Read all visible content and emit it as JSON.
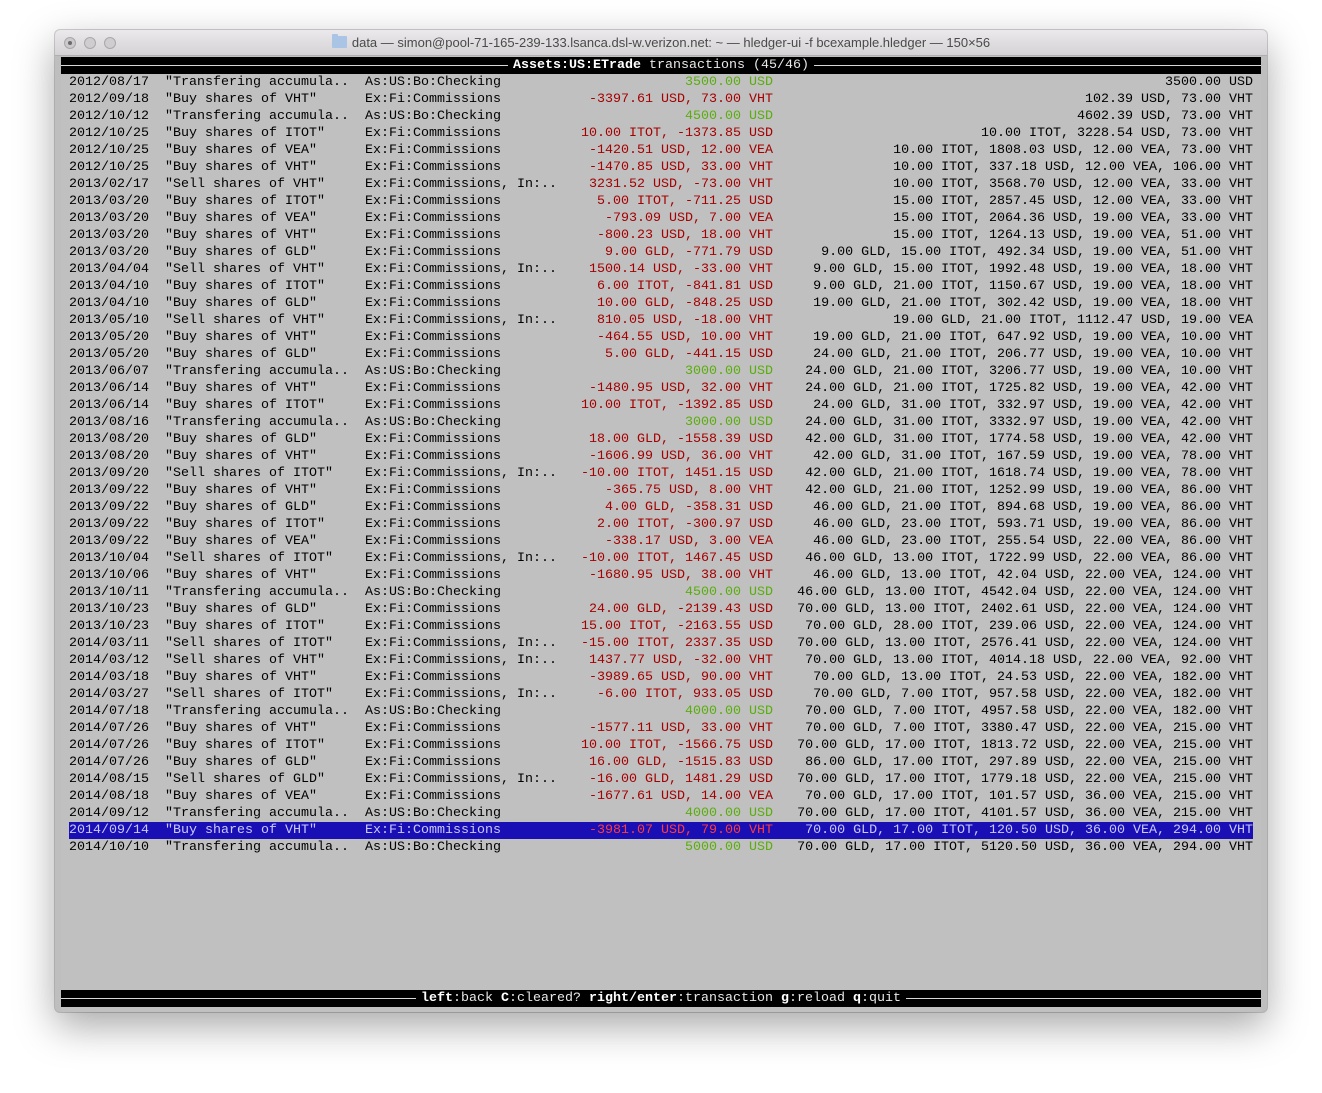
{
  "window": {
    "title": "data — simon@pool-71-165-239-133.lsanca.dsl-w.verizon.net: ~ — hledger-ui -f bcexample.hledger — 150×56",
    "icon": "folder-icon"
  },
  "header": {
    "account": "Assets:US:ETrade",
    "suffix": " transactions (45/46)"
  },
  "colors": {
    "positive": "#5aad0c",
    "negative": "#a40000",
    "selection": "#1a0fb4",
    "background": "#c0c0c0"
  },
  "selected_index": 44,
  "rows": [
    {
      "date": "2012/08/17",
      "desc": "\"Transfering accumula..",
      "account": "As:US:Bo:Checking",
      "amount": "3500.00 USD",
      "balance": "3500.00 USD",
      "sign": "in"
    },
    {
      "date": "2012/09/18",
      "desc": "\"Buy shares of VHT\"",
      "account": "Ex:Fi:Commissions",
      "amount": "-3397.61 USD, 73.00 VHT",
      "balance": "102.39 USD, 73.00 VHT",
      "sign": "out"
    },
    {
      "date": "2012/10/12",
      "desc": "\"Transfering accumula..",
      "account": "As:US:Bo:Checking",
      "amount": "4500.00 USD",
      "balance": "4602.39 USD, 73.00 VHT",
      "sign": "in"
    },
    {
      "date": "2012/10/25",
      "desc": "\"Buy shares of ITOT\"",
      "account": "Ex:Fi:Commissions",
      "amount": "10.00 ITOT, -1373.85 USD",
      "balance": "10.00 ITOT, 3228.54 USD, 73.00 VHT",
      "sign": "out"
    },
    {
      "date": "2012/10/25",
      "desc": "\"Buy shares of VEA\"",
      "account": "Ex:Fi:Commissions",
      "amount": "-1420.51 USD, 12.00 VEA",
      "balance": "10.00 ITOT, 1808.03 USD, 12.00 VEA, 73.00 VHT",
      "sign": "out"
    },
    {
      "date": "2012/10/25",
      "desc": "\"Buy shares of VHT\"",
      "account": "Ex:Fi:Commissions",
      "amount": "-1470.85 USD, 33.00 VHT",
      "balance": "10.00 ITOT, 337.18 USD, 12.00 VEA, 106.00 VHT",
      "sign": "out"
    },
    {
      "date": "2013/02/17",
      "desc": "\"Sell shares of VHT\"",
      "account": "Ex:Fi:Commissions, In:..",
      "amount": "3231.52 USD, -73.00 VHT",
      "balance": "10.00 ITOT, 3568.70 USD, 12.00 VEA, 33.00 VHT",
      "sign": "out"
    },
    {
      "date": "2013/03/20",
      "desc": "\"Buy shares of ITOT\"",
      "account": "Ex:Fi:Commissions",
      "amount": "5.00 ITOT, -711.25 USD",
      "balance": "15.00 ITOT, 2857.45 USD, 12.00 VEA, 33.00 VHT",
      "sign": "out"
    },
    {
      "date": "2013/03/20",
      "desc": "\"Buy shares of VEA\"",
      "account": "Ex:Fi:Commissions",
      "amount": "-793.09 USD, 7.00 VEA",
      "balance": "15.00 ITOT, 2064.36 USD, 19.00 VEA, 33.00 VHT",
      "sign": "out"
    },
    {
      "date": "2013/03/20",
      "desc": "\"Buy shares of VHT\"",
      "account": "Ex:Fi:Commissions",
      "amount": "-800.23 USD, 18.00 VHT",
      "balance": "15.00 ITOT, 1264.13 USD, 19.00 VEA, 51.00 VHT",
      "sign": "out"
    },
    {
      "date": "2013/03/20",
      "desc": "\"Buy shares of GLD\"",
      "account": "Ex:Fi:Commissions",
      "amount": "9.00 GLD, -771.79 USD",
      "balance": "9.00 GLD, 15.00 ITOT, 492.34 USD, 19.00 VEA, 51.00 VHT",
      "sign": "out"
    },
    {
      "date": "2013/04/04",
      "desc": "\"Sell shares of VHT\"",
      "account": "Ex:Fi:Commissions, In:..",
      "amount": "1500.14 USD, -33.00 VHT",
      "balance": "9.00 GLD, 15.00 ITOT, 1992.48 USD, 19.00 VEA, 18.00 VHT",
      "sign": "out"
    },
    {
      "date": "2013/04/10",
      "desc": "\"Buy shares of ITOT\"",
      "account": "Ex:Fi:Commissions",
      "amount": "6.00 ITOT, -841.81 USD",
      "balance": "9.00 GLD, 21.00 ITOT, 1150.67 USD, 19.00 VEA, 18.00 VHT",
      "sign": "out"
    },
    {
      "date": "2013/04/10",
      "desc": "\"Buy shares of GLD\"",
      "account": "Ex:Fi:Commissions",
      "amount": "10.00 GLD, -848.25 USD",
      "balance": "19.00 GLD, 21.00 ITOT, 302.42 USD, 19.00 VEA, 18.00 VHT",
      "sign": "out"
    },
    {
      "date": "2013/05/10",
      "desc": "\"Sell shares of VHT\"",
      "account": "Ex:Fi:Commissions, In:..",
      "amount": "810.05 USD, -18.00 VHT",
      "balance": "19.00 GLD, 21.00 ITOT, 1112.47 USD, 19.00 VEA",
      "sign": "out"
    },
    {
      "date": "2013/05/20",
      "desc": "\"Buy shares of VHT\"",
      "account": "Ex:Fi:Commissions",
      "amount": "-464.55 USD, 10.00 VHT",
      "balance": "19.00 GLD, 21.00 ITOT, 647.92 USD, 19.00 VEA, 10.00 VHT",
      "sign": "out"
    },
    {
      "date": "2013/05/20",
      "desc": "\"Buy shares of GLD\"",
      "account": "Ex:Fi:Commissions",
      "amount": "5.00 GLD, -441.15 USD",
      "balance": "24.00 GLD, 21.00 ITOT, 206.77 USD, 19.00 VEA, 10.00 VHT",
      "sign": "out"
    },
    {
      "date": "2013/06/07",
      "desc": "\"Transfering accumula..",
      "account": "As:US:Bo:Checking",
      "amount": "3000.00 USD",
      "balance": "24.00 GLD, 21.00 ITOT, 3206.77 USD, 19.00 VEA, 10.00 VHT",
      "sign": "in"
    },
    {
      "date": "2013/06/14",
      "desc": "\"Buy shares of VHT\"",
      "account": "Ex:Fi:Commissions",
      "amount": "-1480.95 USD, 32.00 VHT",
      "balance": "24.00 GLD, 21.00 ITOT, 1725.82 USD, 19.00 VEA, 42.00 VHT",
      "sign": "out"
    },
    {
      "date": "2013/06/14",
      "desc": "\"Buy shares of ITOT\"",
      "account": "Ex:Fi:Commissions",
      "amount": "10.00 ITOT, -1392.85 USD",
      "balance": "24.00 GLD, 31.00 ITOT, 332.97 USD, 19.00 VEA, 42.00 VHT",
      "sign": "out"
    },
    {
      "date": "2013/08/16",
      "desc": "\"Transfering accumula..",
      "account": "As:US:Bo:Checking",
      "amount": "3000.00 USD",
      "balance": "24.00 GLD, 31.00 ITOT, 3332.97 USD, 19.00 VEA, 42.00 VHT",
      "sign": "in"
    },
    {
      "date": "2013/08/20",
      "desc": "\"Buy shares of GLD\"",
      "account": "Ex:Fi:Commissions",
      "amount": "18.00 GLD, -1558.39 USD",
      "balance": "42.00 GLD, 31.00 ITOT, 1774.58 USD, 19.00 VEA, 42.00 VHT",
      "sign": "out"
    },
    {
      "date": "2013/08/20",
      "desc": "\"Buy shares of VHT\"",
      "account": "Ex:Fi:Commissions",
      "amount": "-1606.99 USD, 36.00 VHT",
      "balance": "42.00 GLD, 31.00 ITOT, 167.59 USD, 19.00 VEA, 78.00 VHT",
      "sign": "out"
    },
    {
      "date": "2013/09/20",
      "desc": "\"Sell shares of ITOT\"",
      "account": "Ex:Fi:Commissions, In:..",
      "amount": "-10.00 ITOT, 1451.15 USD",
      "balance": "42.00 GLD, 21.00 ITOT, 1618.74 USD, 19.00 VEA, 78.00 VHT",
      "sign": "out"
    },
    {
      "date": "2013/09/22",
      "desc": "\"Buy shares of VHT\"",
      "account": "Ex:Fi:Commissions",
      "amount": "-365.75 USD, 8.00 VHT",
      "balance": "42.00 GLD, 21.00 ITOT, 1252.99 USD, 19.00 VEA, 86.00 VHT",
      "sign": "out"
    },
    {
      "date": "2013/09/22",
      "desc": "\"Buy shares of GLD\"",
      "account": "Ex:Fi:Commissions",
      "amount": "4.00 GLD, -358.31 USD",
      "balance": "46.00 GLD, 21.00 ITOT, 894.68 USD, 19.00 VEA, 86.00 VHT",
      "sign": "out"
    },
    {
      "date": "2013/09/22",
      "desc": "\"Buy shares of ITOT\"",
      "account": "Ex:Fi:Commissions",
      "amount": "2.00 ITOT, -300.97 USD",
      "balance": "46.00 GLD, 23.00 ITOT, 593.71 USD, 19.00 VEA, 86.00 VHT",
      "sign": "out"
    },
    {
      "date": "2013/09/22",
      "desc": "\"Buy shares of VEA\"",
      "account": "Ex:Fi:Commissions",
      "amount": "-338.17 USD, 3.00 VEA",
      "balance": "46.00 GLD, 23.00 ITOT, 255.54 USD, 22.00 VEA, 86.00 VHT",
      "sign": "out"
    },
    {
      "date": "2013/10/04",
      "desc": "\"Sell shares of ITOT\"",
      "account": "Ex:Fi:Commissions, In:..",
      "amount": "-10.00 ITOT, 1467.45 USD",
      "balance": "46.00 GLD, 13.00 ITOT, 1722.99 USD, 22.00 VEA, 86.00 VHT",
      "sign": "out"
    },
    {
      "date": "2013/10/06",
      "desc": "\"Buy shares of VHT\"",
      "account": "Ex:Fi:Commissions",
      "amount": "-1680.95 USD, 38.00 VHT",
      "balance": "46.00 GLD, 13.00 ITOT, 42.04 USD, 22.00 VEA, 124.00 VHT",
      "sign": "out"
    },
    {
      "date": "2013/10/11",
      "desc": "\"Transfering accumula..",
      "account": "As:US:Bo:Checking",
      "amount": "4500.00 USD",
      "balance": "46.00 GLD, 13.00 ITOT, 4542.04 USD, 22.00 VEA, 124.00 VHT",
      "sign": "in"
    },
    {
      "date": "2013/10/23",
      "desc": "\"Buy shares of GLD\"",
      "account": "Ex:Fi:Commissions",
      "amount": "24.00 GLD, -2139.43 USD",
      "balance": "70.00 GLD, 13.00 ITOT, 2402.61 USD, 22.00 VEA, 124.00 VHT",
      "sign": "out"
    },
    {
      "date": "2013/10/23",
      "desc": "\"Buy shares of ITOT\"",
      "account": "Ex:Fi:Commissions",
      "amount": "15.00 ITOT, -2163.55 USD",
      "balance": "70.00 GLD, 28.00 ITOT, 239.06 USD, 22.00 VEA, 124.00 VHT",
      "sign": "out"
    },
    {
      "date": "2014/03/11",
      "desc": "\"Sell shares of ITOT\"",
      "account": "Ex:Fi:Commissions, In:..",
      "amount": "-15.00 ITOT, 2337.35 USD",
      "balance": "70.00 GLD, 13.00 ITOT, 2576.41 USD, 22.00 VEA, 124.00 VHT",
      "sign": "out"
    },
    {
      "date": "2014/03/12",
      "desc": "\"Sell shares of VHT\"",
      "account": "Ex:Fi:Commissions, In:..",
      "amount": "1437.77 USD, -32.00 VHT",
      "balance": "70.00 GLD, 13.00 ITOT, 4014.18 USD, 22.00 VEA, 92.00 VHT",
      "sign": "out"
    },
    {
      "date": "2014/03/18",
      "desc": "\"Buy shares of VHT\"",
      "account": "Ex:Fi:Commissions",
      "amount": "-3989.65 USD, 90.00 VHT",
      "balance": "70.00 GLD, 13.00 ITOT, 24.53 USD, 22.00 VEA, 182.00 VHT",
      "sign": "out"
    },
    {
      "date": "2014/03/27",
      "desc": "\"Sell shares of ITOT\"",
      "account": "Ex:Fi:Commissions, In:..",
      "amount": "-6.00 ITOT, 933.05 USD",
      "balance": "70.00 GLD, 7.00 ITOT, 957.58 USD, 22.00 VEA, 182.00 VHT",
      "sign": "out"
    },
    {
      "date": "2014/07/18",
      "desc": "\"Transfering accumula..",
      "account": "As:US:Bo:Checking",
      "amount": "4000.00 USD",
      "balance": "70.00 GLD, 7.00 ITOT, 4957.58 USD, 22.00 VEA, 182.00 VHT",
      "sign": "in"
    },
    {
      "date": "2014/07/26",
      "desc": "\"Buy shares of VHT\"",
      "account": "Ex:Fi:Commissions",
      "amount": "-1577.11 USD, 33.00 VHT",
      "balance": "70.00 GLD, 7.00 ITOT, 3380.47 USD, 22.00 VEA, 215.00 VHT",
      "sign": "out"
    },
    {
      "date": "2014/07/26",
      "desc": "\"Buy shares of ITOT\"",
      "account": "Ex:Fi:Commissions",
      "amount": "10.00 ITOT, -1566.75 USD",
      "balance": "70.00 GLD, 17.00 ITOT, 1813.72 USD, 22.00 VEA, 215.00 VHT",
      "sign": "out"
    },
    {
      "date": "2014/07/26",
      "desc": "\"Buy shares of GLD\"",
      "account": "Ex:Fi:Commissions",
      "amount": "16.00 GLD, -1515.83 USD",
      "balance": "86.00 GLD, 17.00 ITOT, 297.89 USD, 22.00 VEA, 215.00 VHT",
      "sign": "out"
    },
    {
      "date": "2014/08/15",
      "desc": "\"Sell shares of GLD\"",
      "account": "Ex:Fi:Commissions, In:..",
      "amount": "-16.00 GLD, 1481.29 USD",
      "balance": "70.00 GLD, 17.00 ITOT, 1779.18 USD, 22.00 VEA, 215.00 VHT",
      "sign": "out"
    },
    {
      "date": "2014/08/18",
      "desc": "\"Buy shares of VEA\"",
      "account": "Ex:Fi:Commissions",
      "amount": "-1677.61 USD, 14.00 VEA",
      "balance": "70.00 GLD, 17.00 ITOT, 101.57 USD, 36.00 VEA, 215.00 VHT",
      "sign": "out"
    },
    {
      "date": "2014/09/12",
      "desc": "\"Transfering accumula..",
      "account": "As:US:Bo:Checking",
      "amount": "4000.00 USD",
      "balance": "70.00 GLD, 17.00 ITOT, 4101.57 USD, 36.00 VEA, 215.00 VHT",
      "sign": "in"
    },
    {
      "date": "2014/09/14",
      "desc": "\"Buy shares of VHT\"",
      "account": "Ex:Fi:Commissions",
      "amount": "-3981.07 USD, 79.00 VHT",
      "balance": "70.00 GLD, 17.00 ITOT, 120.50 USD, 36.00 VEA, 294.00 VHT",
      "sign": "out"
    },
    {
      "date": "2014/10/10",
      "desc": "\"Transfering accumula..",
      "account": "As:US:Bo:Checking",
      "amount": "5000.00 USD",
      "balance": "70.00 GLD, 17.00 ITOT, 5120.50 USD, 36.00 VEA, 294.00 VHT",
      "sign": "in"
    }
  ],
  "footer": {
    "keys": [
      {
        "key": "left",
        "action": "back"
      },
      {
        "key": "C",
        "action": "cleared?"
      },
      {
        "key": "right/enter",
        "action": "transaction"
      },
      {
        "key": "g",
        "action": "reload"
      },
      {
        "key": "q",
        "action": "quit"
      }
    ]
  }
}
